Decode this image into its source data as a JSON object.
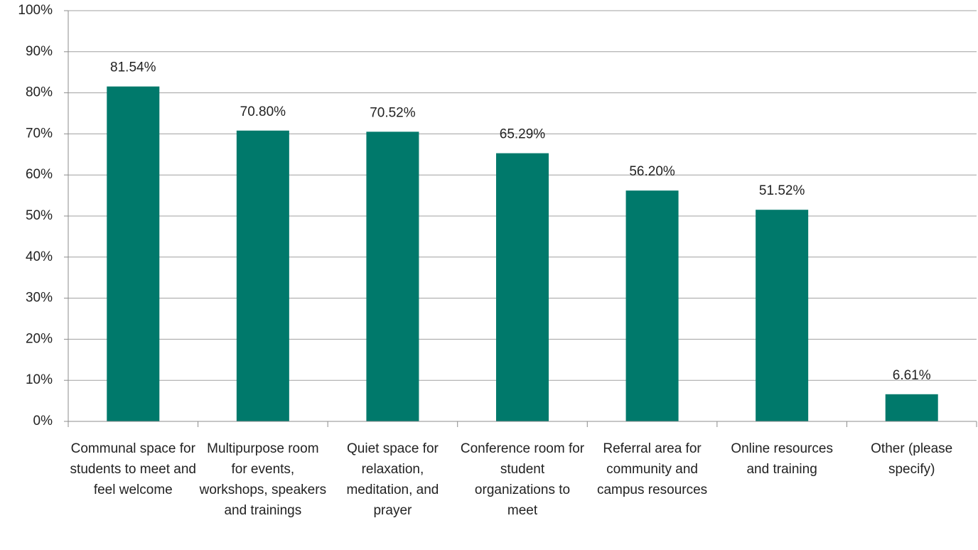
{
  "chart_data": {
    "type": "bar",
    "categories": [
      "Communal space for students to meet and feel welcome",
      "Multipurpose room for events, workshops, speakers and trainings",
      "Quiet space for relaxation, meditation, and prayer",
      "Conference room for student organizations to meet",
      "Referral area for community and campus resources",
      "Online resources and training",
      "Other (please specify)"
    ],
    "values": [
      81.54,
      70.8,
      70.52,
      65.29,
      56.2,
      51.52,
      6.61
    ],
    "value_labels": [
      "81.54%",
      "70.80%",
      "70.52%",
      "65.29%",
      "56.20%",
      "51.52%",
      "6.61%"
    ],
    "color": "#00796b",
    "ylim": [
      0,
      100
    ],
    "yticks": [
      {
        "value": 0,
        "label": "0%"
      },
      {
        "value": 10,
        "label": "10%"
      },
      {
        "value": 20,
        "label": "20%"
      },
      {
        "value": 30,
        "label": "30%"
      },
      {
        "value": 40,
        "label": "40%"
      },
      {
        "value": 50,
        "label": "50%"
      },
      {
        "value": 60,
        "label": "60%"
      },
      {
        "value": 70,
        "label": "70%"
      },
      {
        "value": 80,
        "label": "80%"
      },
      {
        "value": 90,
        "label": "90%"
      },
      {
        "value": 100,
        "label": "100%"
      }
    ],
    "grid": true
  }
}
